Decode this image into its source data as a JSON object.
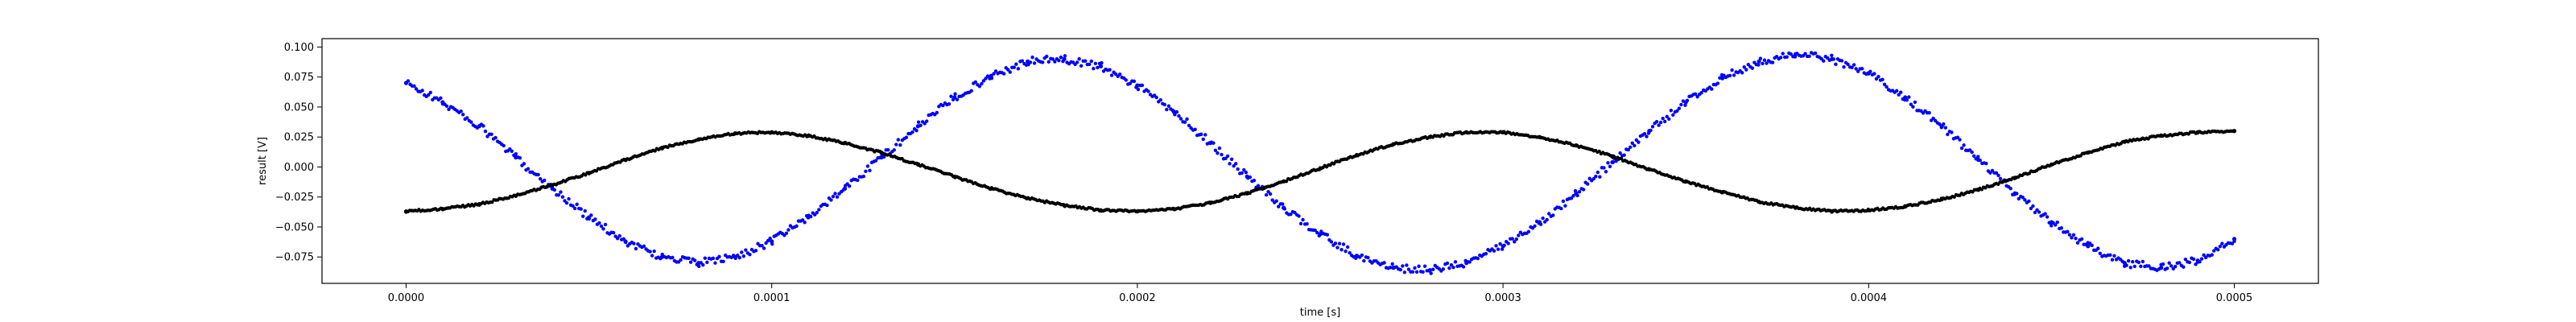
{
  "chart_data": {
    "type": "scatter",
    "title": "",
    "xlabel": "time [s]",
    "ylabel": "result [V]",
    "xlim": [
      -2.3e-05,
      0.000523
    ],
    "ylim": [
      -0.097,
      0.107
    ],
    "x_ticks": [
      0,
      0.0001,
      0.0002,
      0.0003,
      0.0004,
      0.0005
    ],
    "x_tick_labels": [
      "0.0000",
      "0.0001",
      "0.0002",
      "0.0003",
      "0.0004",
      "0.0005"
    ],
    "y_ticks": [
      -0.075,
      -0.05,
      -0.025,
      0,
      0.025,
      0.05,
      0.075,
      0.1
    ],
    "y_tick_labels": [
      "−0.075",
      "−0.050",
      "−0.025",
      "0.000",
      "0.025",
      "0.050",
      "0.075",
      "0.100"
    ],
    "grid": false,
    "legend": "none",
    "series": [
      {
        "color": "#0000ff",
        "marker": "dot",
        "x": [
          0,
          1e-05,
          2e-05,
          3e-05,
          4e-05,
          5e-05,
          6e-05,
          7e-05,
          8e-05,
          9e-05,
          0.0001,
          0.00011,
          0.00012,
          0.00013,
          0.00014,
          0.00015,
          0.00016,
          0.00017,
          0.00018,
          0.00019,
          0.0002,
          0.00021,
          0.00022,
          0.00023,
          0.00024,
          0.00025,
          0.00026,
          0.00027,
          0.00028,
          0.00029,
          0.0003,
          0.00031,
          0.00032,
          0.00033,
          0.00034,
          0.00035,
          0.00036,
          0.00037,
          0.00038,
          0.00039,
          0.0004,
          0.00041,
          0.00042,
          0.00043,
          0.00044,
          0.00045,
          0.00046,
          0.00047,
          0.00048,
          0.00049,
          0.0005
        ],
        "y": [
          0.07,
          0.054,
          0.034,
          0.008,
          -0.018,
          -0.042,
          -0.062,
          -0.075,
          -0.08,
          -0.075,
          -0.062,
          -0.042,
          -0.018,
          0.008,
          0.034,
          0.058,
          0.076,
          0.088,
          0.09,
          0.084,
          0.068,
          0.046,
          0.02,
          -0.008,
          -0.034,
          -0.056,
          -0.074,
          -0.084,
          -0.086,
          -0.08,
          -0.066,
          -0.046,
          -0.022,
          0.004,
          0.03,
          0.054,
          0.074,
          0.088,
          0.094,
          0.09,
          0.078,
          0.058,
          0.034,
          0.006,
          -0.022,
          -0.046,
          -0.066,
          -0.08,
          -0.084,
          -0.078,
          -0.06
        ]
      },
      {
        "color": "#000000",
        "marker": "dot",
        "x": [
          0,
          1e-05,
          2e-05,
          3e-05,
          4e-05,
          5e-05,
          6e-05,
          7e-05,
          8e-05,
          9e-05,
          0.0001,
          0.00011,
          0.00012,
          0.00013,
          0.00014,
          0.00015,
          0.00016,
          0.00017,
          0.00018,
          0.00019,
          0.0002,
          0.00021,
          0.00022,
          0.00023,
          0.00024,
          0.00025,
          0.00026,
          0.00027,
          0.00028,
          0.00029,
          0.0003,
          0.00031,
          0.00032,
          0.00033,
          0.00034,
          0.00035,
          0.00036,
          0.00037,
          0.00038,
          0.00039,
          0.0004,
          0.00041,
          0.00042,
          0.00043,
          0.00044,
          0.00045,
          0.00046,
          0.00047,
          0.00048,
          0.00049,
          0.0005
        ],
        "y": [
          -0.037,
          -0.035,
          -0.031,
          -0.024,
          -0.015,
          -0.005,
          0.006,
          0.016,
          0.023,
          0.028,
          0.029,
          0.026,
          0.02,
          0.012,
          0.002,
          -0.008,
          -0.018,
          -0.026,
          -0.032,
          -0.036,
          -0.037,
          -0.035,
          -0.03,
          -0.022,
          -0.012,
          -0.001,
          0.01,
          0.019,
          0.025,
          0.029,
          0.029,
          0.025,
          0.018,
          0.009,
          -0.002,
          -0.012,
          -0.021,
          -0.029,
          -0.034,
          -0.037,
          -0.036,
          -0.033,
          -0.027,
          -0.019,
          -0.009,
          0.002,
          0.012,
          0.021,
          0.026,
          0.029,
          0.03
        ]
      }
    ]
  }
}
